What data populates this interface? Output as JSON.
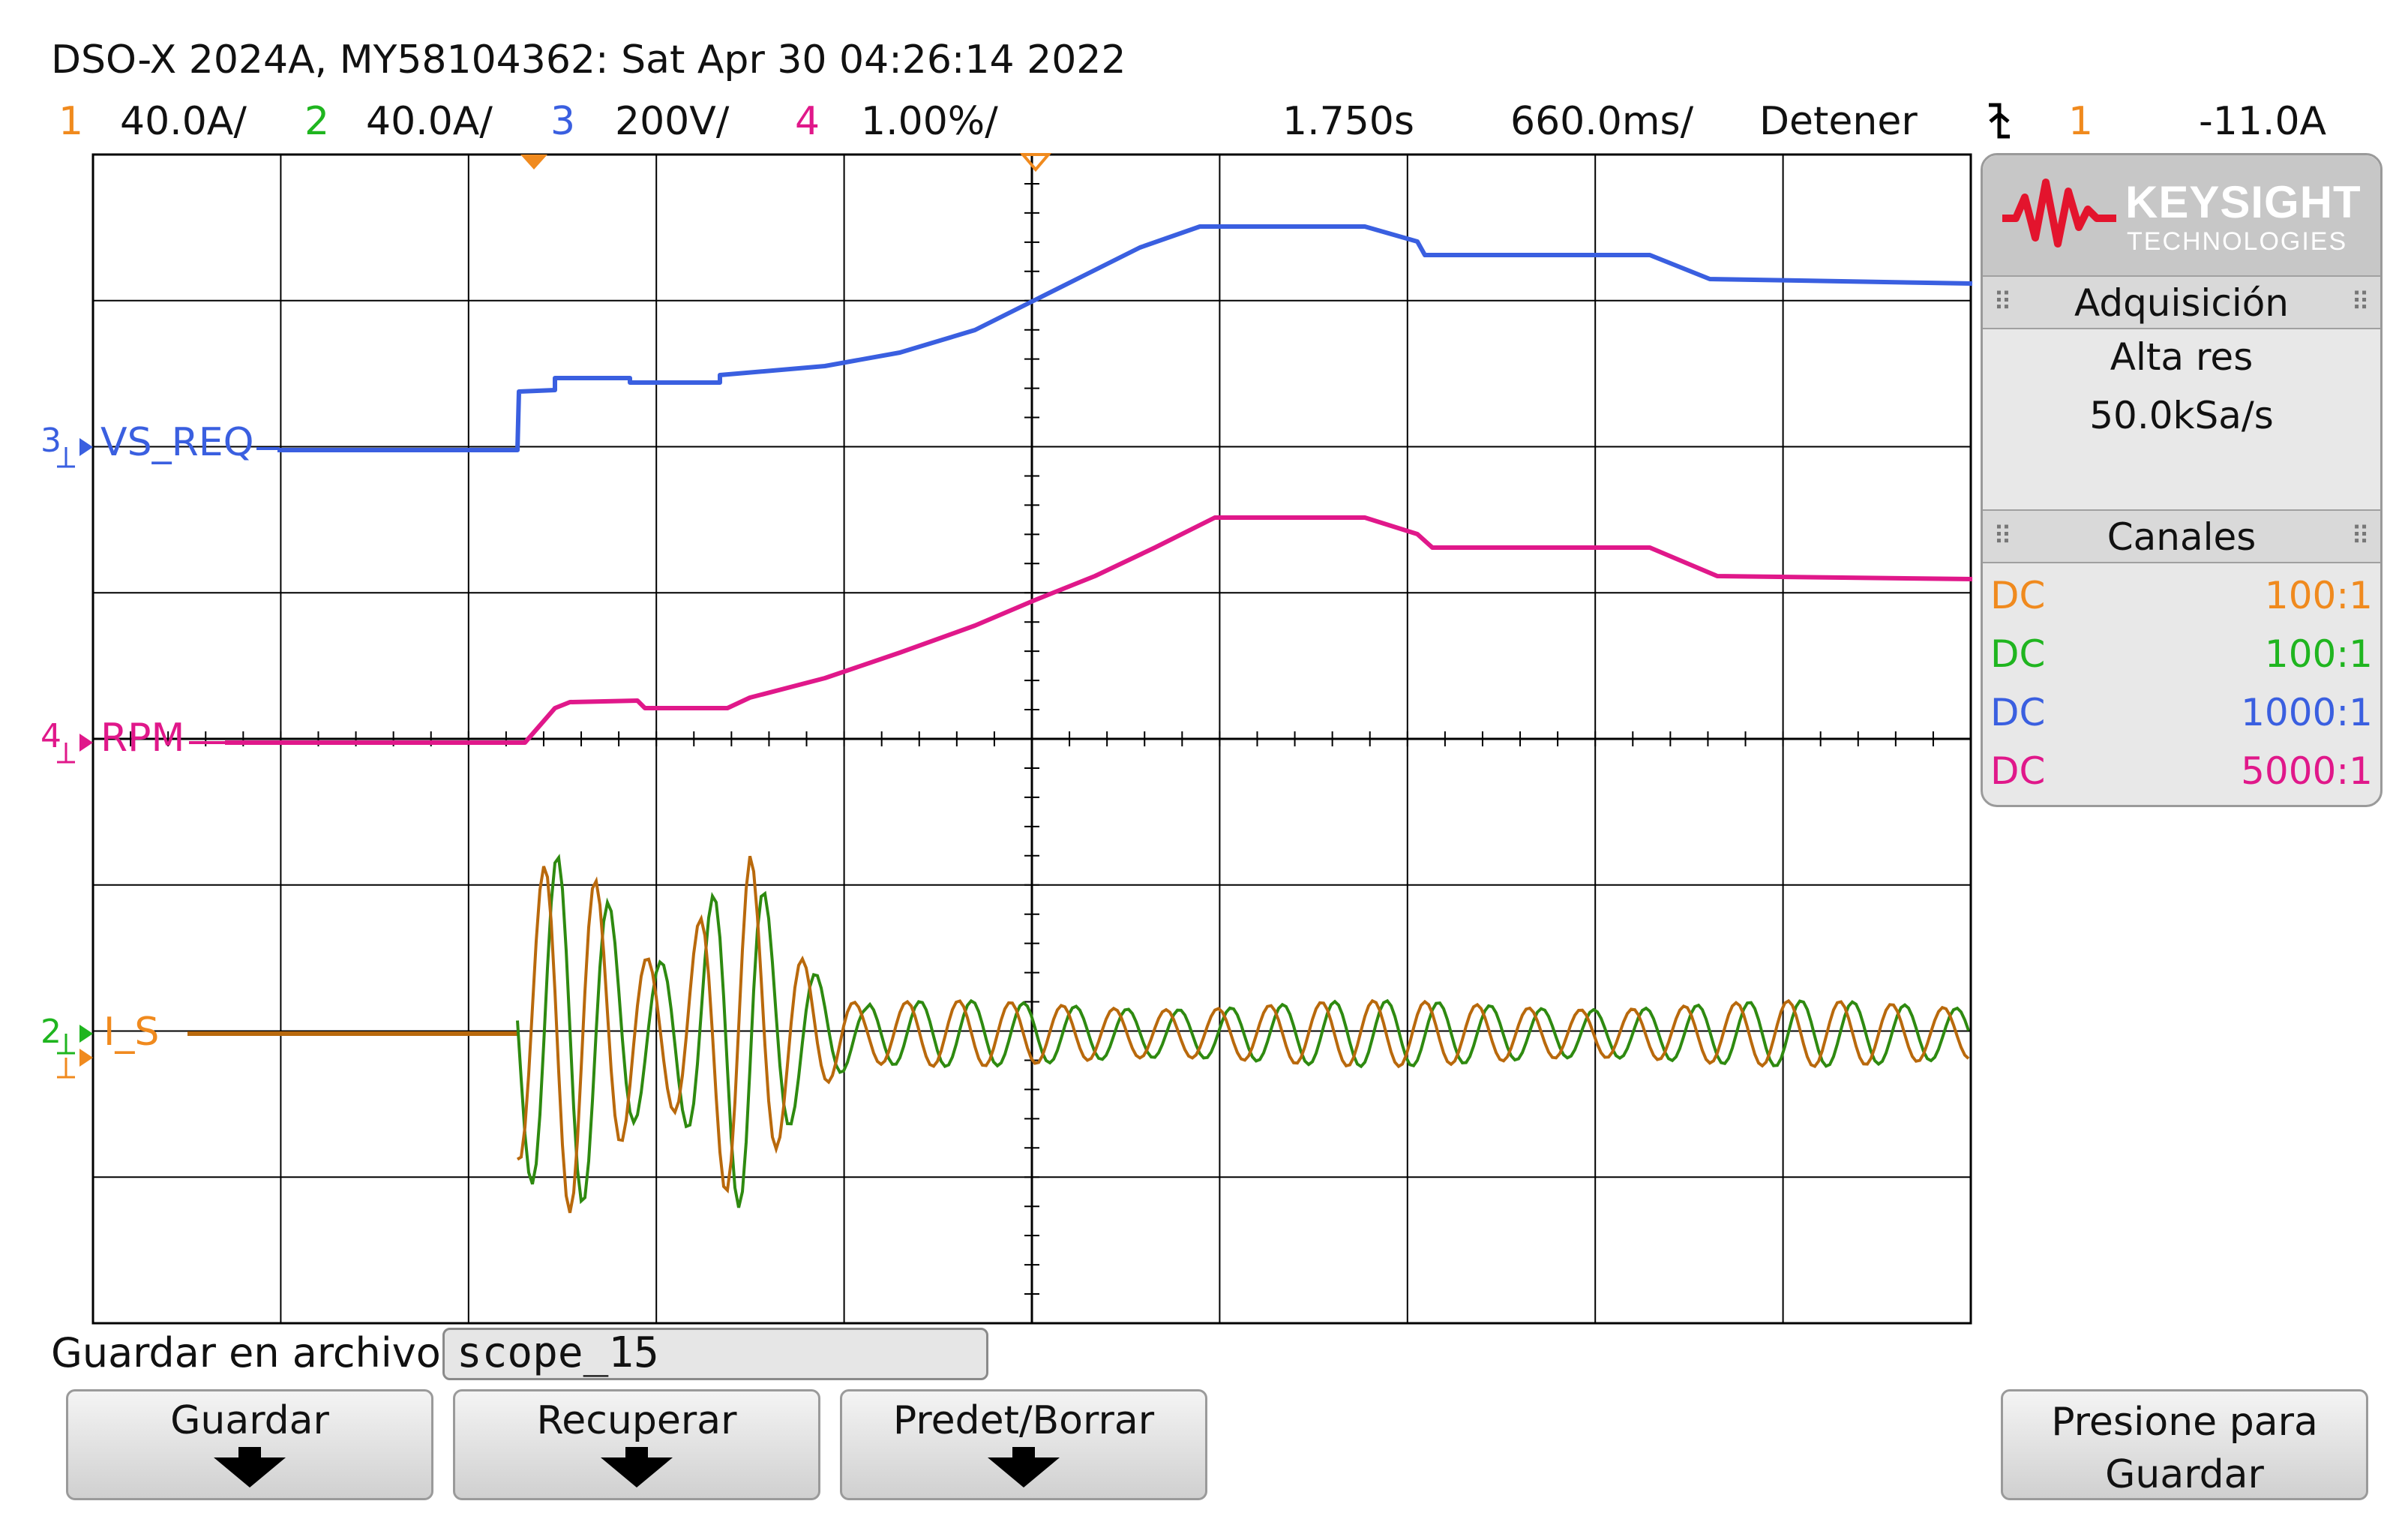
{
  "header": {
    "title": "DSO-X 2024A, MY58104362: Sat Apr 30 04:26:14 2022",
    "channels": [
      {
        "num": "1",
        "scale": "40.0A/",
        "color": "#f08a1e"
      },
      {
        "num": "2",
        "scale": "40.0A/",
        "color": "#1fb51f"
      },
      {
        "num": "3",
        "scale": "200V/",
        "color": "#3a5fe0"
      },
      {
        "num": "4",
        "scale": "1.00%/",
        "color": "#e0188a"
      }
    ],
    "time_position": "1.750s",
    "time_scale": "660.0ms/",
    "run_state": "Detener",
    "trigger_icon": "trigger-falling-edge-icon",
    "trigger_source": "1",
    "trigger_level": "-11.0A"
  },
  "traces": {
    "vs_req_label": "VS_REQ",
    "rpm_label": "RPM",
    "is_label": "I_S",
    "ch3_marker": "3",
    "ch4_marker": "4",
    "ch2_marker": "2"
  },
  "side_panel": {
    "brand": "KEYSIGHT",
    "brand_sub": "TECHNOLOGIES",
    "acq_title": "Adquisición",
    "acq_mode": "Alta res",
    "sample_rate": "50.0kSa/s",
    "channels_title": "Canales",
    "channel_rows": [
      {
        "coupling": "DC",
        "probe": "100:1",
        "color": "#f08a1e"
      },
      {
        "coupling": "DC",
        "probe": "100:1",
        "color": "#1fb51f"
      },
      {
        "coupling": "DC",
        "probe": "1000:1",
        "color": "#3a5fe0"
      },
      {
        "coupling": "DC",
        "probe": "5000:1",
        "color": "#e0188a"
      }
    ]
  },
  "save": {
    "label": "Guardar en archivo =",
    "filename": "scope_15"
  },
  "softkeys": {
    "guardar": "Guardar",
    "recuperar": "Recuperar",
    "predet": "Predet/Borrar",
    "presione_1": "Presione para",
    "presione_2": "Guardar"
  },
  "colors": {
    "ch1": "#f08a1e",
    "ch1_dark": "#b9690c",
    "ch2": "#2e8a10",
    "ch3": "#3a5fe0",
    "ch4": "#e0188a",
    "grid": "#000000"
  }
}
